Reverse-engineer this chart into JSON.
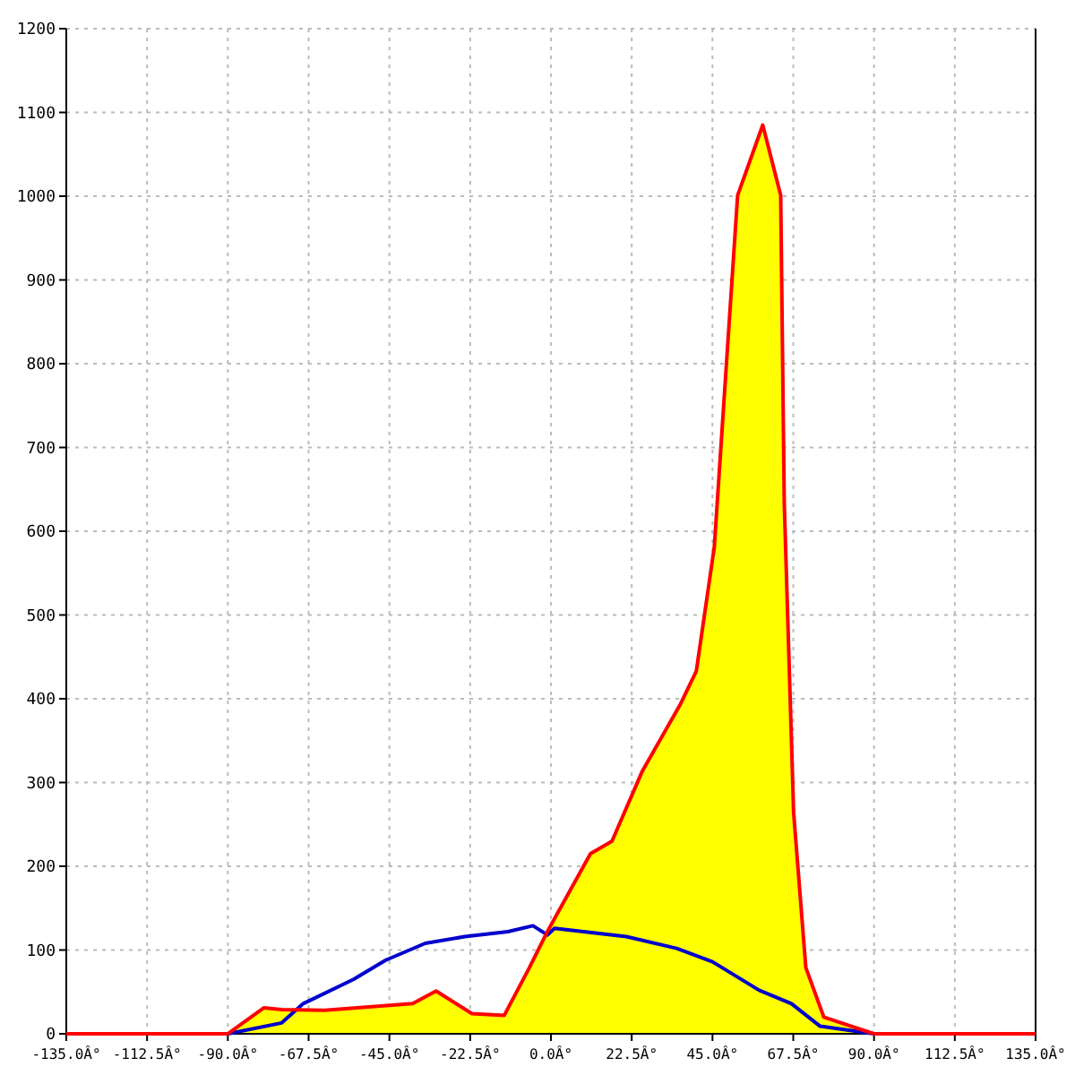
{
  "chart_data": {
    "type": "area",
    "xlim": [
      -135,
      135
    ],
    "ylim": [
      0,
      1200
    ],
    "xticks": [
      {
        "value": -135,
        "label": "-135.0Â°"
      },
      {
        "value": -112.5,
        "label": "-112.5Â°"
      },
      {
        "value": -90,
        "label": "-90.0Â°"
      },
      {
        "value": -67.5,
        "label": "-67.5Â°"
      },
      {
        "value": -45,
        "label": "-45.0Â°"
      },
      {
        "value": -22.5,
        "label": "-22.5Â°"
      },
      {
        "value": 0,
        "label": "0.0Â°"
      },
      {
        "value": 22.5,
        "label": "22.5Â°"
      },
      {
        "value": 45,
        "label": "45.0Â°"
      },
      {
        "value": 67.5,
        "label": "67.5Â°"
      },
      {
        "value": 90,
        "label": "90.0Â°"
      },
      {
        "value": 112.5,
        "label": "112.5Â°"
      },
      {
        "value": 135,
        "label": "135.0Â°"
      }
    ],
    "yticks": [
      0,
      100,
      200,
      300,
      400,
      500,
      600,
      700,
      800,
      900,
      1000,
      1100,
      1200
    ],
    "grid": true,
    "series": [
      {
        "type": "line",
        "color": "#0000cc",
        "x": [
          -90,
          -75,
          -69,
          -55,
          -46,
          -35,
          -24,
          -12,
          -5,
          -1,
          1,
          21,
          35,
          45,
          58,
          67,
          75,
          90
        ],
        "values": [
          0,
          13,
          36,
          65,
          88,
          108,
          116,
          122,
          129,
          118,
          126,
          116,
          102,
          86,
          52,
          36,
          9,
          0
        ]
      },
      {
        "color": "#ff0000",
        "x": [
          -135,
          -90,
          -80,
          -75,
          -63,
          -38.5,
          -32,
          -22,
          -13,
          -6,
          -1,
          11,
          17,
          25.5,
          36,
          40.5,
          45.5,
          52,
          59,
          64,
          65,
          67.6,
          71,
          76,
          90,
          135
        ],
        "values": [
          0,
          0,
          31,
          29,
          28,
          36,
          51,
          24,
          22,
          79,
          122,
          215,
          230,
          314,
          393,
          433,
          581,
          1001,
          1085,
          1001,
          633,
          264,
          79,
          20,
          0,
          0
        ]
      }
    ]
  }
}
